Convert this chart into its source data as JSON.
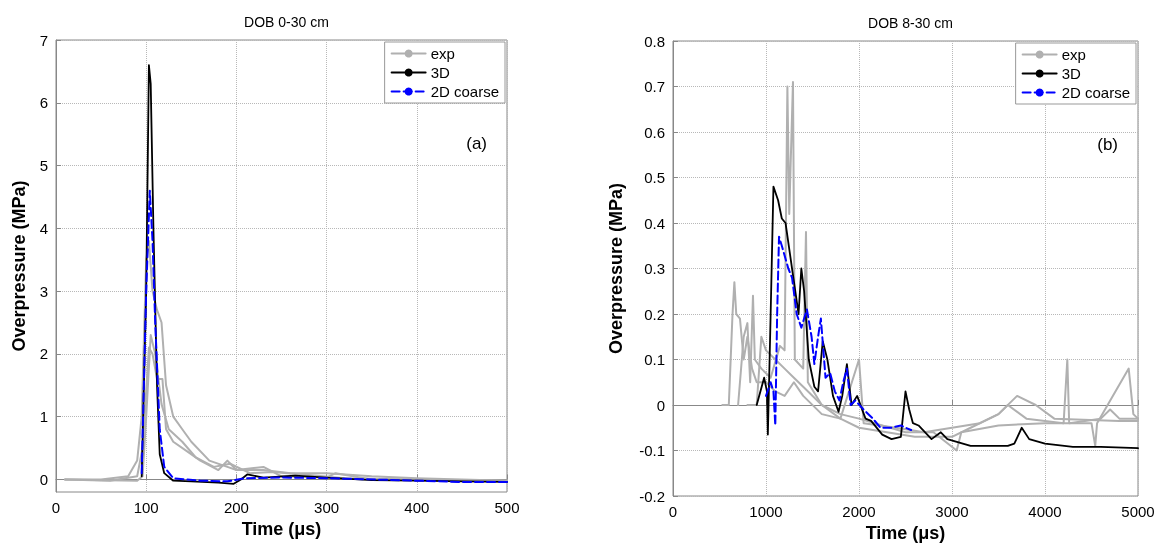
{
  "chart_data": [
    {
      "type": "line",
      "title": "DOB 0-30 cm",
      "xlabel": "Time (μs)",
      "ylabel": "Overpressure (MPa)",
      "annotations": [
        "(a)"
      ],
      "xlim": [
        0,
        500
      ],
      "xticks": [
        0,
        100,
        200,
        300,
        400,
        500
      ],
      "ylim": [
        -0.2,
        7
      ],
      "yticks": [
        0,
        1,
        2,
        3,
        4,
        5,
        6,
        7
      ],
      "grid": true,
      "legend": "top right",
      "marker": "none",
      "line_style": "solid",
      "series": [
        {
          "name": "exp",
          "color": "#b0b0b0",
          "x": [
            10,
            50,
            80,
            90,
            95,
            100,
            103,
            107,
            112,
            117,
            122,
            130,
            140,
            150,
            170,
            190,
            200,
            230,
            260,
            300,
            350,
            400,
            450,
            500
          ],
          "values": [
            0,
            0,
            0.05,
            0.3,
            1.0,
            3.5,
            3.8,
            3.0,
            2.7,
            2.5,
            1.5,
            1.0,
            0.8,
            0.6,
            0.3,
            0.2,
            0.15,
            0.15,
            0.1,
            0.1,
            0.05,
            0.02,
            0,
            -0.02
          ]
        },
        {
          "color": "#b0b0b0",
          "x": [
            10,
            60,
            90,
            96,
            103,
            107,
            112,
            118,
            122,
            130,
            145,
            160,
            180,
            190,
            200,
            230,
            250,
            300,
            310,
            350,
            400,
            500
          ],
          "values": [
            0,
            -0.02,
            0.05,
            0.5,
            2.1,
            2.0,
            1.6,
            1.6,
            0.8,
            0.6,
            0.45,
            0.3,
            0.15,
            0.3,
            0.15,
            0.2,
            0.05,
            0.03,
            0.1,
            0,
            -0.01,
            -0.03
          ]
        },
        {
          "color": "#b0b0b0",
          "x": [
            10,
            90,
            96,
            100,
            105,
            110,
            117,
            125,
            140,
            155,
            175,
            193,
            215,
            240,
            290,
            320,
            400,
            500
          ],
          "values": [
            0,
            -0.02,
            0.05,
            1.0,
            2.3,
            2.0,
            1.2,
            0.8,
            0.6,
            0.35,
            0.2,
            0.25,
            0.1,
            0.12,
            0.06,
            0.02,
            0,
            -0.02
          ]
        },
        {
          "name": "3D",
          "color": "#000000",
          "x": [
            95,
            100,
            103,
            105,
            108,
            112,
            115,
            120,
            130,
            150,
            180,
            197,
            205,
            212,
            230,
            265,
            300,
            350,
            400,
            450,
            500
          ],
          "values": [
            0.05,
            3,
            6.6,
            6.3,
            4,
            1.5,
            0.4,
            0.1,
            -0.02,
            -0.03,
            -0.05,
            -0.07,
            0,
            0.08,
            0.03,
            0.06,
            0.03,
            -0.01,
            -0.02,
            -0.03,
            -0.04
          ]
        },
        {
          "name": "2D coarse",
          "color": "#0000ff",
          "line_style": "dashed",
          "x": [
            95,
            100,
            104,
            107,
            110,
            115,
            120,
            130,
            160,
            190,
            210,
            250,
            300,
            400,
            450,
            500
          ],
          "values": [
            0.1,
            3,
            4.6,
            3.8,
            2.5,
            0.8,
            0.2,
            0.02,
            -0.02,
            -0.03,
            0.02,
            0.03,
            0.02,
            -0.02,
            -0.04,
            -0.04
          ]
        }
      ]
    },
    {
      "type": "line",
      "title": "DOB 8-30 cm",
      "xlabel": "Time (μs)",
      "ylabel": "Overpressure (MPa)",
      "annotations": [
        "(b)"
      ],
      "xlim": [
        0,
        5000
      ],
      "xticks": [
        0,
        1000,
        2000,
        3000,
        4000,
        5000
      ],
      "ylim": [
        -0.2,
        0.8
      ],
      "yticks": [
        -0.2,
        -0.1,
        0,
        0.1,
        0.2,
        0.3,
        0.4,
        0.5,
        0.6,
        0.7,
        0.8
      ],
      "grid": true,
      "legend": "top right",
      "marker": "none",
      "line_style": "solid",
      "series": [
        {
          "name": "exp",
          "color": "#b0b0b0",
          "x": [
            530,
            600,
            640,
            660,
            680,
            720,
            760,
            800,
            850,
            900,
            1000,
            1100,
            1200,
            1300,
            1400,
            1600,
            1800,
            2000,
            2300,
            2600,
            3000,
            3200,
            3500,
            3600,
            3800,
            4200,
            4240,
            4260,
            4600,
            4700,
            4800,
            5000
          ],
          "values": [
            0,
            0,
            0.2,
            0.27,
            0.2,
            0.19,
            0.1,
            0.15,
            0.08,
            0.05,
            0.05,
            0.03,
            0.02,
            0.05,
            0.02,
            -0.02,
            -0.03,
            -0.05,
            -0.06,
            -0.07,
            -0.07,
            -0.05,
            -0.02,
            0,
            -0.03,
            -0.04,
            0.1,
            -0.04,
            -0.03,
            -0.01,
            -0.03,
            -0.03
          ]
        },
        {
          "color": "#b0b0b0",
          "x": [
            700,
            760,
            800,
            830,
            860,
            880,
            950,
            1050,
            1150,
            1200,
            1230,
            1250,
            1290,
            1310,
            1400,
            1430,
            1450,
            1600,
            1800,
            2000,
            2500,
            2800,
            3050,
            3100,
            3500,
            4000,
            4500,
            4540,
            4560,
            4900,
            4950,
            5000
          ],
          "values": [
            0,
            0.15,
            0.18,
            0.05,
            0.24,
            0.1,
            0.08,
            0.06,
            0.13,
            0.12,
            0.7,
            0.42,
            0.71,
            0.1,
            0.08,
            0.38,
            0.05,
            0,
            -0.02,
            -0.03,
            -0.06,
            -0.06,
            -0.1,
            -0.06,
            -0.045,
            -0.04,
            -0.04,
            -0.09,
            -0.04,
            0.08,
            -0.02,
            -0.03
          ]
        },
        {
          "color": "#b0b0b0",
          "x": [
            800,
            900,
            950,
            1000,
            1100,
            1200,
            1300,
            1400,
            1600,
            1800,
            2000,
            2050,
            2400,
            2700,
            3000,
            3300,
            3500,
            3700,
            3900,
            4100,
            4800,
            5000
          ],
          "values": [
            0,
            0,
            0.15,
            0.12,
            0.1,
            0.08,
            0.06,
            0.04,
            0,
            -0.03,
            0.1,
            -0.04,
            -0.05,
            -0.06,
            -0.05,
            -0.04,
            -0.02,
            0.02,
            0,
            -0.03,
            -0.035,
            -0.035
          ]
        },
        {
          "name": "3D",
          "color": "#000000",
          "x": [
            900,
            980,
            1010,
            1020,
            1050,
            1080,
            1130,
            1170,
            1210,
            1280,
            1350,
            1380,
            1410,
            1460,
            1520,
            1560,
            1610,
            1660,
            1720,
            1780,
            1820,
            1870,
            1920,
            1980,
            2070,
            2130,
            2250,
            2350,
            2450,
            2500,
            2540,
            2580,
            2640,
            2780,
            2880,
            2950,
            3200,
            3600,
            3670,
            3750,
            3830,
            4000,
            4300,
            4600,
            5000
          ],
          "values": [
            0,
            0.06,
            0.03,
            -0.065,
            0.2,
            0.48,
            0.45,
            0.41,
            0.4,
            0.3,
            0.2,
            0.3,
            0.25,
            0.1,
            0.04,
            0.03,
            0.14,
            0.1,
            0.02,
            -0.015,
            0.02,
            0.09,
            0,
            0.02,
            -0.03,
            -0.035,
            -0.065,
            -0.075,
            -0.07,
            0.03,
            -0.01,
            -0.04,
            -0.045,
            -0.075,
            -0.06,
            -0.075,
            -0.09,
            -0.09,
            -0.085,
            -0.05,
            -0.075,
            -0.085,
            -0.092,
            -0.092,
            -0.095
          ]
        },
        {
          "name": "2D coarse",
          "color": "#0000ff",
          "line_style": "dashed",
          "x": [
            1000,
            1050,
            1080,
            1100,
            1120,
            1140,
            1170,
            1240,
            1280,
            1330,
            1380,
            1440,
            1490,
            1520,
            1560,
            1590,
            1640,
            1690,
            1740,
            1790,
            1830,
            1870,
            1910,
            1960,
            2050,
            2150,
            2230,
            2350,
            2450,
            2500,
            2560
          ],
          "values": [
            0.02,
            0.05,
            0.03,
            -0.045,
            0.2,
            0.37,
            0.35,
            0.3,
            0.28,
            0.2,
            0.17,
            0.21,
            0.15,
            0.09,
            0.15,
            0.19,
            0.06,
            0.07,
            0.03,
            0.01,
            0.05,
            0.08,
            0,
            0.01,
            -0.01,
            -0.03,
            -0.05,
            -0.05,
            -0.045,
            -0.05,
            -0.055
          ]
        }
      ]
    }
  ]
}
